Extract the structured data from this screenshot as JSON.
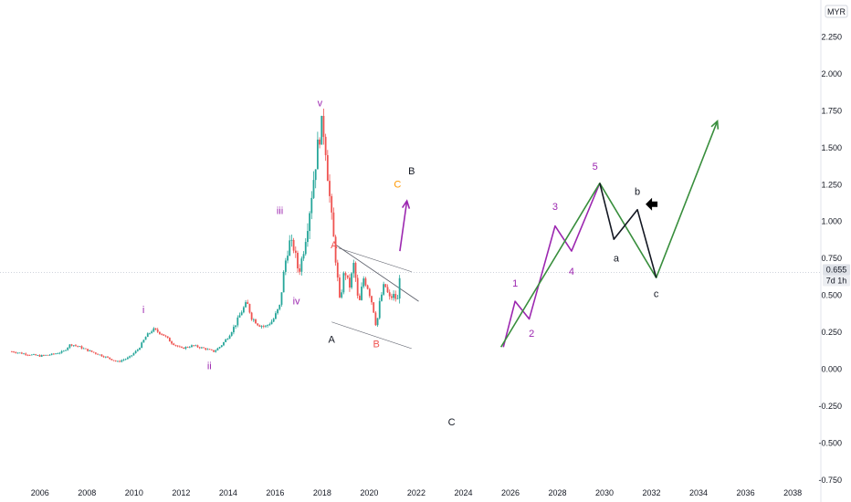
{
  "chart_data": {
    "type": "candlestick",
    "currency": "MYR",
    "price_label": "0.655",
    "interval_label": "7d 1h",
    "last_price": 0.655,
    "ylim": [
      -0.8,
      2.5
    ],
    "xlim": [
      2004.3,
      2039.2
    ],
    "y_ticks": [
      {
        "value": 2.25,
        "label": "2.250"
      },
      {
        "value": 2.0,
        "label": "2.000"
      },
      {
        "value": 1.75,
        "label": "1.750"
      },
      {
        "value": 1.5,
        "label": "1.500"
      },
      {
        "value": 1.25,
        "label": "1.250"
      },
      {
        "value": 1.0,
        "label": "1.000"
      },
      {
        "value": 0.75,
        "label": "0.750"
      },
      {
        "value": 0.5,
        "label": "0.500"
      },
      {
        "value": 0.25,
        "label": "0.250"
      },
      {
        "value": 0.0,
        "label": "0.000"
      },
      {
        "value": -0.25,
        "label": "-0.250"
      },
      {
        "value": -0.5,
        "label": "-0.500"
      },
      {
        "value": -0.75,
        "label": "-0.750"
      }
    ],
    "x_ticks": [
      {
        "value": 2006,
        "label": "2006"
      },
      {
        "value": 2008,
        "label": "2008"
      },
      {
        "value": 2010,
        "label": "2010"
      },
      {
        "value": 2012,
        "label": "2012"
      },
      {
        "value": 2014,
        "label": "2014"
      },
      {
        "value": 2016,
        "label": "2016"
      },
      {
        "value": 2018,
        "label": "2018"
      },
      {
        "value": 2020,
        "label": "2020"
      },
      {
        "value": 2022,
        "label": "2022"
      },
      {
        "value": 2024,
        "label": "2024"
      },
      {
        "value": 2026,
        "label": "2026"
      },
      {
        "value": 2028,
        "label": "2028"
      },
      {
        "value": 2030,
        "label": "2030"
      },
      {
        "value": 2032,
        "label": "2032"
      },
      {
        "value": 2034,
        "label": "2034"
      },
      {
        "value": 2036,
        "label": "2036"
      },
      {
        "value": 2038,
        "label": "2038"
      }
    ],
    "price_path": [
      [
        2004.8,
        0.12
      ],
      [
        2005.5,
        0.1
      ],
      [
        2006.0,
        0.09
      ],
      [
        2006.5,
        0.1
      ],
      [
        2007.0,
        0.12
      ],
      [
        2007.3,
        0.17
      ],
      [
        2007.7,
        0.15
      ],
      [
        2008.0,
        0.13
      ],
      [
        2008.5,
        0.1
      ],
      [
        2009.0,
        0.07
      ],
      [
        2009.3,
        0.05
      ],
      [
        2009.8,
        0.08
      ],
      [
        2010.2,
        0.14
      ],
      [
        2010.5,
        0.22
      ],
      [
        2010.8,
        0.27
      ],
      [
        2011.2,
        0.24
      ],
      [
        2011.6,
        0.18
      ],
      [
        2012.0,
        0.14
      ],
      [
        2012.5,
        0.16
      ],
      [
        2013.0,
        0.14
      ],
      [
        2013.4,
        0.12
      ],
      [
        2013.7,
        0.16
      ],
      [
        2014.0,
        0.22
      ],
      [
        2014.3,
        0.3
      ],
      [
        2014.6,
        0.4
      ],
      [
        2014.8,
        0.45
      ],
      [
        2015.0,
        0.35
      ],
      [
        2015.3,
        0.3
      ],
      [
        2015.6,
        0.29
      ],
      [
        2015.9,
        0.33
      ],
      [
        2016.2,
        0.43
      ],
      [
        2016.4,
        0.7
      ],
      [
        2016.6,
        0.86
      ],
      [
        2016.8,
        0.82
      ],
      [
        2017.0,
        0.65
      ],
      [
        2017.2,
        0.8
      ],
      [
        2017.4,
        1.0
      ],
      [
        2017.6,
        1.25
      ],
      [
        2017.8,
        1.5
      ],
      [
        2017.95,
        1.65
      ],
      [
        2018.1,
        1.6
      ],
      [
        2018.2,
        1.38
      ],
      [
        2018.35,
        1.1
      ],
      [
        2018.55,
        0.78
      ],
      [
        2018.75,
        0.45
      ],
      [
        2018.95,
        0.68
      ],
      [
        2019.15,
        0.55
      ],
      [
        2019.35,
        0.72
      ],
      [
        2019.55,
        0.42
      ],
      [
        2019.75,
        0.62
      ],
      [
        2019.95,
        0.55
      ],
      [
        2020.15,
        0.43
      ],
      [
        2020.3,
        0.28
      ],
      [
        2020.45,
        0.46
      ],
      [
        2020.65,
        0.58
      ],
      [
        2020.85,
        0.48
      ],
      [
        2021.05,
        0.5
      ],
      [
        2021.2,
        0.46
      ],
      [
        2021.3,
        0.66
      ]
    ],
    "elliott_labels": [
      {
        "text": "i",
        "x": 2010.4,
        "y": 0.38,
        "color": "#9c27b0"
      },
      {
        "text": "ii",
        "x": 2013.2,
        "y": 0.0,
        "color": "#9c27b0"
      },
      {
        "text": "iii",
        "x": 2016.2,
        "y": 1.05,
        "color": "#9c27b0"
      },
      {
        "text": "iv",
        "x": 2016.9,
        "y": 0.44,
        "color": "#9c27b0"
      },
      {
        "text": "v",
        "x": 2017.9,
        "y": 1.78,
        "color": "#9c27b0"
      },
      {
        "text": "A",
        "x": 2018.5,
        "y": 0.82,
        "color": "#ef5350"
      },
      {
        "text": "B",
        "x": 2020.3,
        "y": 0.15,
        "color": "#ef5350"
      },
      {
        "text": "C",
        "x": 2021.2,
        "y": 1.23,
        "color": "#ff9800"
      },
      {
        "text": "A",
        "x": 2018.4,
        "y": 0.18,
        "color": "#131722"
      },
      {
        "text": "B",
        "x": 2021.8,
        "y": 1.32,
        "color": "#131722"
      },
      {
        "text": "C",
        "x": 2023.5,
        "y": -0.38,
        "color": "#131722"
      },
      {
        "text": "1",
        "x": 2026.2,
        "y": 0.56,
        "color": "#9c27b0"
      },
      {
        "text": "2",
        "x": 2026.9,
        "y": 0.22,
        "color": "#9c27b0"
      },
      {
        "text": "3",
        "x": 2027.9,
        "y": 1.08,
        "color": "#9c27b0"
      },
      {
        "text": "4",
        "x": 2028.6,
        "y": 0.64,
        "color": "#9c27b0"
      },
      {
        "text": "5",
        "x": 2029.6,
        "y": 1.35,
        "color": "#9c27b0"
      },
      {
        "text": "a",
        "x": 2030.5,
        "y": 0.73,
        "color": "#131722"
      },
      {
        "text": "b",
        "x": 2031.4,
        "y": 1.18,
        "color": "#131722"
      },
      {
        "text": "c",
        "x": 2032.2,
        "y": 0.49,
        "color": "#131722"
      }
    ],
    "projection_purple": [
      [
        2025.7,
        0.15
      ],
      [
        2026.2,
        0.46
      ],
      [
        2026.8,
        0.34
      ],
      [
        2027.9,
        0.97
      ],
      [
        2028.6,
        0.8
      ],
      [
        2029.8,
        1.26
      ]
    ],
    "projection_green": [
      [
        2025.6,
        0.15
      ],
      [
        2029.8,
        1.26
      ],
      [
        2032.2,
        0.62
      ],
      [
        2034.8,
        1.68
      ]
    ],
    "projection_black": [
      [
        2029.8,
        1.26
      ],
      [
        2030.4,
        0.88
      ],
      [
        2031.4,
        1.08
      ],
      [
        2032.2,
        0.62
      ]
    ],
    "purple_arrow": [
      [
        2021.3,
        0.8
      ],
      [
        2021.6,
        1.14
      ]
    ],
    "trend_upper": [
      [
        2018.6,
        0.84
      ],
      [
        2022.1,
        0.46
      ]
    ],
    "trend_channel_top": [
      [
        2018.7,
        0.82
      ],
      [
        2021.8,
        0.66
      ]
    ],
    "trend_channel_bottom": [
      [
        2018.4,
        0.32
      ],
      [
        2021.8,
        0.14
      ]
    ]
  }
}
